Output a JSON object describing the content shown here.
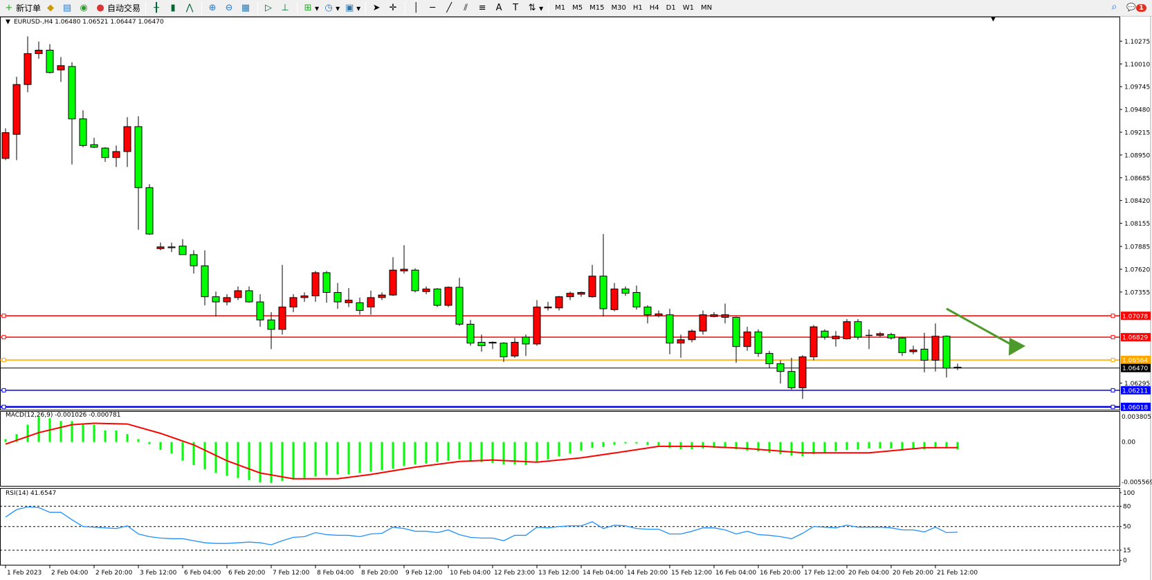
{
  "toolbar": {
    "new_order": "新订单",
    "auto_trading": "自动交易",
    "timeframes": [
      "M1",
      "M5",
      "M15",
      "M30",
      "H1",
      "H4",
      "D1",
      "W1",
      "MN"
    ],
    "notification_count": "1"
  },
  "chart": {
    "header": "EURUSD-,H4  1.06480 1.06521 1.06447 1.06470",
    "symbol": "EURUSD-",
    "timeframe": "H4",
    "colors": {
      "bull": "#ff0000",
      "bear": "#00ff00",
      "outline": "#000000"
    },
    "price_ticks": [
      "1.10275",
      "1.10010",
      "1.09745",
      "1.09480",
      "1.09215",
      "1.08950",
      "1.08685",
      "1.08420",
      "1.08155",
      "1.07885",
      "1.07620",
      "1.07355",
      "1.06295"
    ],
    "levels": [
      {
        "price": 1.07078,
        "label": "1.07078",
        "color": "#ff0000"
      },
      {
        "price": 1.06829,
        "label": "1.06829",
        "color": "#ff0000"
      },
      {
        "price": 1.06564,
        "label": "1.06564",
        "color": "#ffa500"
      },
      {
        "price": 1.0647,
        "label": "1.06470",
        "color": "#000000"
      },
      {
        "price": 1.06211,
        "label": "1.06211",
        "color": "#0000ff"
      },
      {
        "price": 1.06018,
        "label": "1.06018",
        "color": "#0000ff"
      }
    ],
    "arrow_color": "#4c9a2a",
    "ohlc": [
      [
        1.0891,
        1.0926,
        1.0889,
        1.0921
      ],
      [
        1.0919,
        1.0986,
        1.0889,
        1.0977
      ],
      [
        1.0977,
        1.1033,
        1.0968,
        1.1013
      ],
      [
        1.1013,
        1.1027,
        1.1007,
        1.1017
      ],
      [
        1.1017,
        1.1024,
        1.099,
        1.0991
      ],
      [
        1.0994,
        1.1009,
        1.098,
        1.0999
      ],
      [
        1.0998,
        1.1003,
        1.0884,
        1.0937
      ],
      [
        1.0937,
        1.0947,
        1.0904,
        1.0906
      ],
      [
        1.0907,
        1.0915,
        1.0903,
        1.0904
      ],
      [
        1.0903,
        1.0904,
        1.0887,
        1.0892
      ],
      [
        1.0892,
        1.0906,
        1.0881,
        1.0899
      ],
      [
        1.0899,
        1.0939,
        1.0881,
        1.0928
      ],
      [
        1.0928,
        1.094,
        1.0808,
        1.0857
      ],
      [
        1.0857,
        1.0861,
        1.0802,
        1.0803
      ],
      [
        1.0786,
        1.0793,
        1.0784,
        1.0788
      ],
      [
        1.0788,
        1.0793,
        1.0782,
        1.0787
      ],
      [
        1.0789,
        1.0797,
        1.0779,
        1.0779
      ],
      [
        1.0779,
        1.0784,
        1.0757,
        1.0766
      ],
      [
        1.0766,
        1.0784,
        1.072,
        1.073
      ],
      [
        1.073,
        1.0736,
        1.0707,
        1.0724
      ],
      [
        1.0724,
        1.0733,
        1.072,
        1.0729
      ],
      [
        1.0729,
        1.0742,
        1.0726,
        1.0737
      ],
      [
        1.0737,
        1.0742,
        1.0723,
        1.0724
      ],
      [
        1.0724,
        1.0733,
        1.0695,
        1.0703
      ],
      [
        1.0703,
        1.0712,
        1.0669,
        1.0692
      ],
      [
        1.0692,
        1.0767,
        1.0686,
        1.0718
      ],
      [
        1.0718,
        1.0733,
        1.0712,
        1.0729
      ],
      [
        1.0729,
        1.0735,
        1.0724,
        1.0731
      ],
      [
        1.0731,
        1.076,
        1.0724,
        1.0758
      ],
      [
        1.0758,
        1.076,
        1.0723,
        1.0735
      ],
      [
        1.0735,
        1.0746,
        1.0716,
        1.0724
      ],
      [
        1.0723,
        1.074,
        1.0718,
        1.0726
      ],
      [
        1.0723,
        1.0729,
        1.0709,
        1.0714
      ],
      [
        1.0718,
        1.0737,
        1.0709,
        1.0729
      ],
      [
        1.0729,
        1.0735,
        1.0726,
        1.0732
      ],
      [
        1.0732,
        1.0776,
        1.0731,
        1.0761
      ],
      [
        1.076,
        1.079,
        1.0757,
        1.0762
      ],
      [
        1.0761,
        1.0763,
        1.0735,
        1.0737
      ],
      [
        1.0736,
        1.0742,
        1.0733,
        1.0739
      ],
      [
        1.0739,
        1.074,
        1.0718,
        1.072
      ],
      [
        1.072,
        1.0742,
        1.0718,
        1.0741
      ],
      [
        1.0741,
        1.0752,
        1.0696,
        1.0698
      ],
      [
        1.0698,
        1.0703,
        1.0673,
        1.0676
      ],
      [
        1.0677,
        1.0686,
        1.0666,
        1.0673
      ],
      [
        1.0677,
        1.0678,
        1.0669,
        1.0676
      ],
      [
        1.0676,
        1.0677,
        1.0654,
        1.066
      ],
      [
        1.0661,
        1.0682,
        1.0659,
        1.0677
      ],
      [
        1.0683,
        1.0686,
        1.0661,
        1.0675
      ],
      [
        1.0675,
        1.0726,
        1.0673,
        1.0718
      ],
      [
        1.0717,
        1.0724,
        1.0714,
        1.0718
      ],
      [
        1.0717,
        1.0731,
        1.0714,
        1.073
      ],
      [
        1.073,
        1.0736,
        1.0726,
        1.0734
      ],
      [
        1.0733,
        1.0736,
        1.073,
        1.0735
      ],
      [
        1.073,
        1.0767,
        1.0729,
        1.0754
      ],
      [
        1.0754,
        1.0803,
        1.0707,
        1.0716
      ],
      [
        1.0715,
        1.0746,
        1.0713,
        1.0739
      ],
      [
        1.0739,
        1.0742,
        1.0731,
        1.0734
      ],
      [
        1.0735,
        1.0743,
        1.0715,
        1.0718
      ],
      [
        1.0718,
        1.072,
        1.0699,
        1.0709
      ],
      [
        1.0708,
        1.0714,
        1.0706,
        1.071
      ],
      [
        1.0709,
        1.0716,
        1.0663,
        1.0676
      ],
      [
        1.0676,
        1.0686,
        1.0659,
        1.068
      ],
      [
        1.068,
        1.0692,
        1.0677,
        1.069
      ],
      [
        1.069,
        1.0714,
        1.0686,
        1.0709
      ],
      [
        1.0707,
        1.0712,
        1.0706,
        1.0709
      ],
      [
        1.0706,
        1.0722,
        1.0699,
        1.0709
      ],
      [
        1.0706,
        1.0707,
        1.0653,
        1.0672
      ],
      [
        1.0672,
        1.0695,
        1.0667,
        1.0689
      ],
      [
        1.0689,
        1.0692,
        1.066,
        1.0664
      ],
      [
        1.0664,
        1.0667,
        1.0647,
        1.0652
      ],
      [
        1.0652,
        1.0656,
        1.0629,
        1.0643
      ],
      [
        1.0643,
        1.0659,
        1.0622,
        1.0624
      ],
      [
        1.0624,
        1.0662,
        1.0611,
        1.066
      ],
      [
        1.066,
        1.0697,
        1.0656,
        1.0695
      ],
      [
        1.069,
        1.0692,
        1.068,
        1.0683
      ],
      [
        1.0681,
        1.069,
        1.0672,
        1.0684
      ],
      [
        1.0681,
        1.0704,
        1.068,
        1.0701
      ],
      [
        1.0701,
        1.0704,
        1.068,
        1.0683
      ],
      [
        1.0685,
        1.0692,
        1.0669,
        1.0685
      ],
      [
        1.0685,
        1.0689,
        1.0683,
        1.0687
      ],
      [
        1.0686,
        1.0688,
        1.068,
        1.0682
      ],
      [
        1.0682,
        1.0683,
        1.0661,
        1.0665
      ],
      [
        1.0666,
        1.0673,
        1.0663,
        1.0668
      ],
      [
        1.0669,
        1.0688,
        1.0642,
        1.0656
      ],
      [
        1.0656,
        1.0699,
        1.0643,
        1.0684
      ],
      [
        1.0684,
        1.0685,
        1.0636,
        1.0647
      ],
      [
        1.0648,
        1.06521,
        1.06447,
        1.0647
      ]
    ],
    "time_labels": [
      "1 Feb 2023",
      "2 Feb 04:00",
      "2 Feb 20:00",
      "3 Feb 12:00",
      "6 Feb 04:00",
      "6 Feb 20:00",
      "7 Feb 12:00",
      "8 Feb 04:00",
      "8 Feb 20:00",
      "9 Feb 12:00",
      "10 Feb 04:00",
      "12 Feb 23:00",
      "13 Feb 12:00",
      "14 Feb 04:00",
      "14 Feb 20:00",
      "15 Feb 12:00",
      "16 Feb 04:00",
      "16 Feb 20:00",
      "17 Feb 12:00",
      "20 Feb 04:00",
      "20 Feb 20:00",
      "21 Feb 12:00"
    ]
  },
  "macd": {
    "label": "MACD(12,26,9) -0.001026 -0.000781",
    "ticks": [
      "0.003805",
      "0.00",
      "-0.005569"
    ],
    "hist_color": "#00ff00",
    "signal_color": "#ff0000",
    "histogram": [
      0.0004,
      0.0011,
      0.0024,
      0.0035,
      0.0033,
      0.0029,
      0.0029,
      0.0026,
      0.0024,
      0.0016,
      0.0016,
      0.0011,
      0.0004,
      -0.0003,
      -0.0011,
      -0.0016,
      -0.0026,
      -0.0032,
      -0.0038,
      -0.0043,
      -0.0047,
      -0.005,
      -0.0053,
      -0.0056,
      -0.0057,
      -0.0054,
      -0.0052,
      -0.005,
      -0.0048,
      -0.0046,
      -0.0045,
      -0.0045,
      -0.0043,
      -0.0041,
      -0.0039,
      -0.0037,
      -0.0033,
      -0.0031,
      -0.003,
      -0.0028,
      -0.0026,
      -0.0024,
      -0.0026,
      -0.0028,
      -0.0029,
      -0.0031,
      -0.0031,
      -0.0032,
      -0.0027,
      -0.0024,
      -0.002,
      -0.0016,
      -0.0012,
      -0.0008,
      -0.0007,
      -0.0004,
      -0.0002,
      -0.0002,
      -0.0004,
      -0.0005,
      -0.0008,
      -0.001,
      -0.001,
      -0.0009,
      -0.0008,
      -0.0008,
      -0.001,
      -0.0012,
      -0.0013,
      -0.0015,
      -0.0017,
      -0.0019,
      -0.002,
      -0.0017,
      -0.0015,
      -0.0013,
      -0.0011,
      -0.001,
      -0.0009,
      -0.0009,
      -0.0009,
      -0.001,
      -0.001,
      -0.001,
      -0.0009,
      -0.0009,
      -0.001026
    ],
    "signal": [
      [
        0,
        -0.0003
      ],
      [
        3,
        0.0013
      ],
      [
        6,
        0.0024
      ],
      [
        8,
        0.0026
      ],
      [
        11,
        0.0025
      ],
      [
        14,
        0.0012
      ],
      [
        17,
        -0.0004
      ],
      [
        20,
        -0.0026
      ],
      [
        23,
        -0.0043
      ],
      [
        26,
        -0.0051
      ],
      [
        30,
        -0.0051
      ],
      [
        33,
        -0.0045
      ],
      [
        37,
        -0.0035
      ],
      [
        41,
        -0.0027
      ],
      [
        44,
        -0.0025
      ],
      [
        48,
        -0.0028
      ],
      [
        52,
        -0.0022
      ],
      [
        56,
        -0.0013
      ],
      [
        59,
        -0.0006
      ],
      [
        63,
        -0.0006
      ],
      [
        67,
        -0.0009
      ],
      [
        72,
        -0.0015
      ],
      [
        78,
        -0.0015
      ],
      [
        83,
        -0.0008
      ],
      [
        86,
        -0.000781
      ]
    ]
  },
  "rsi": {
    "label": "RSI(14) 41.6547",
    "ticks": [
      "100",
      "80",
      "50",
      "15",
      "0"
    ],
    "levels": [
      80,
      50,
      15
    ],
    "color": "#1e90ff",
    "values": [
      64,
      75,
      79,
      78,
      71,
      71,
      60,
      50,
      49,
      48,
      47,
      51,
      39,
      35,
      33,
      32,
      32,
      29,
      26,
      25,
      25,
      26,
      27,
      26,
      23,
      29,
      34,
      35,
      41,
      38,
      37,
      37,
      35,
      39,
      40,
      49,
      47,
      43,
      43,
      41,
      45,
      38,
      34,
      33,
      33,
      29,
      37,
      37,
      49,
      48,
      50,
      51,
      51,
      57,
      47,
      52,
      51,
      47,
      46,
      46,
      39,
      39,
      43,
      48,
      48,
      45,
      39,
      43,
      38,
      37,
      35,
      32,
      40,
      50,
      49,
      48,
      52,
      49,
      49,
      49,
      48,
      45,
      45,
      42,
      49,
      41,
      41.6547
    ]
  }
}
